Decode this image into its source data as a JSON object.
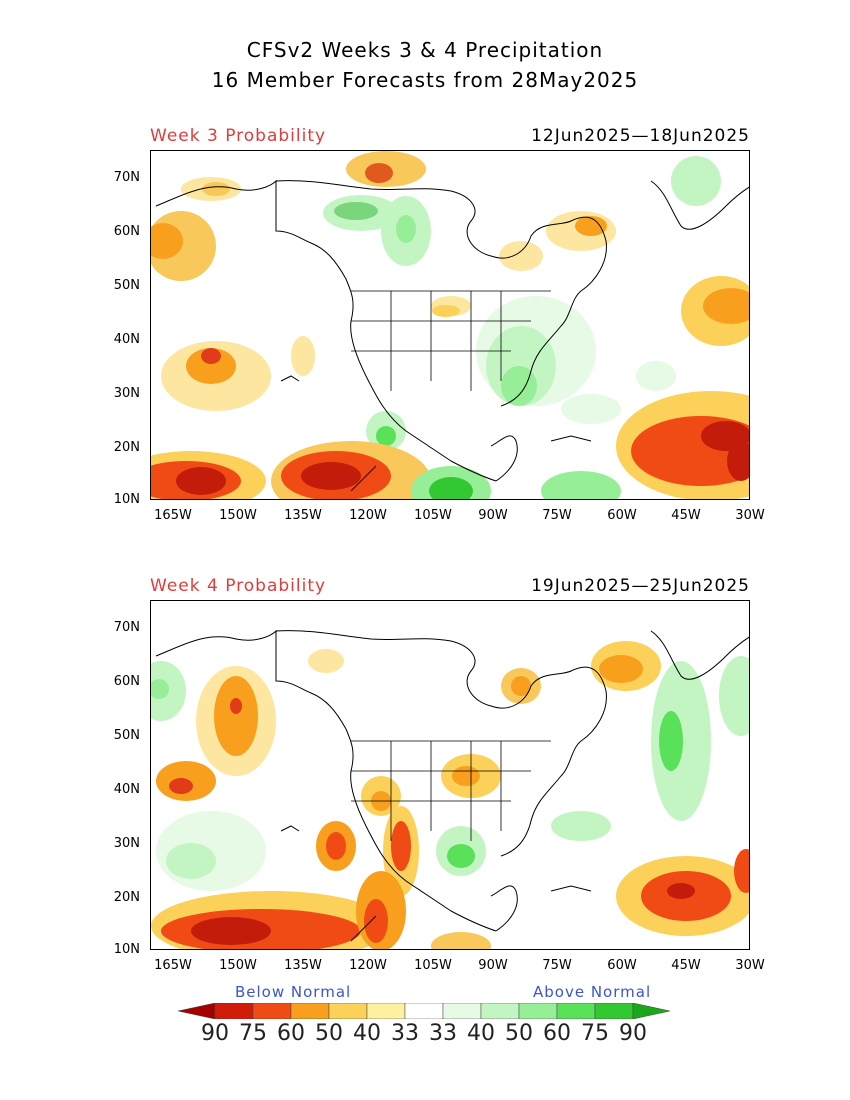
{
  "title_line1": "CFSv2 Weeks 3 & 4 Precipitation",
  "title_line2": "16 Member Forecasts from 28May2025",
  "panels": [
    {
      "week_label": "Week 3 Probability",
      "date_range": "12Jun2025—18Jun2025"
    },
    {
      "week_label": "Week 4 Probability",
      "date_range": "19Jun2025—25Jun2025"
    }
  ],
  "lat_labels": [
    "70N",
    "60N",
    "50N",
    "40N",
    "30N",
    "20N",
    "10N"
  ],
  "lon_labels": [
    "165W",
    "150W",
    "135W",
    "120W",
    "105W",
    "90W",
    "75W",
    "60W",
    "45W",
    "30W"
  ],
  "legend": {
    "below_label": "Below Normal",
    "above_label": "Above Normal",
    "values": [
      "90",
      "75",
      "60",
      "50",
      "40",
      "33",
      "33",
      "40",
      "50",
      "60",
      "75",
      "90"
    ],
    "colors": [
      "#a50000",
      "#d21c0a",
      "#f04b14",
      "#f8a01e",
      "#fcd15a",
      "#fdf0a0",
      "#ffffff",
      "#e6fae6",
      "#c3f5c3",
      "#96ee96",
      "#5ae15a",
      "#32c832",
      "#1aa81a"
    ]
  }
}
